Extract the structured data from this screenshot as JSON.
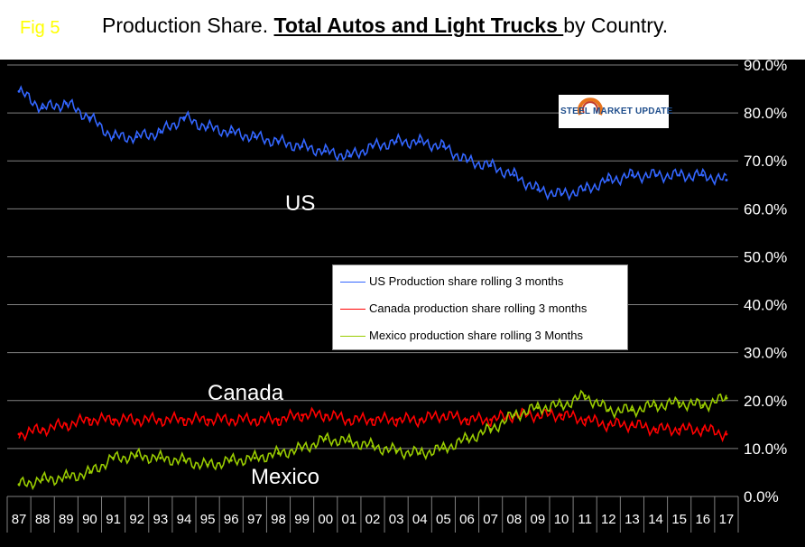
{
  "header": {
    "fig_label": "Fig 5",
    "title_pre": "Production Share. ",
    "title_bold": "Total Autos and Light Trucks ",
    "title_post": "by Country."
  },
  "logo": {
    "text": "STEEL MARKET UPDATE"
  },
  "annotations": {
    "us": "US",
    "canada": "Canada",
    "mexico": "Mexico"
  },
  "colors": {
    "us": "#3366ff",
    "canada": "#ff0000",
    "mexico": "#99cc00",
    "grid": "#808080",
    "axis_text": "#ffffff"
  },
  "chart_data": {
    "type": "line",
    "title": "Production Share. Total Autos and Light Trucks by Country.",
    "xlabel": "",
    "ylabel": "",
    "ylim": [
      0,
      90
    ],
    "yticks": [
      "0.0%",
      "10.0%",
      "20.0%",
      "30.0%",
      "40.0%",
      "50.0%",
      "60.0%",
      "70.0%",
      "80.0%",
      "90.0%"
    ],
    "categories": [
      "87",
      "88",
      "89",
      "90",
      "91",
      "92",
      "93",
      "94",
      "95",
      "96",
      "97",
      "98",
      "99",
      "00",
      "01",
      "02",
      "03",
      "04",
      "05",
      "06",
      "07",
      "08",
      "09",
      "10",
      "11",
      "12",
      "13",
      "14",
      "15",
      "16",
      "17"
    ],
    "series": [
      {
        "name": "US Production share rolling 3 months",
        "values": [
          84.5,
          81,
          82,
          79,
          75,
          75,
          76,
          79,
          77,
          76,
          75,
          74,
          73,
          72,
          71,
          73,
          74,
          74,
          73,
          70,
          69,
          67,
          64,
          63,
          64,
          66,
          67,
          67,
          67,
          67,
          66
        ]
      },
      {
        "name": "Canada production share rolling 3 months",
        "values": [
          13,
          14,
          15,
          16,
          16,
          16,
          16,
          16,
          16,
          16,
          16,
          16,
          17,
          17,
          16,
          16,
          16,
          16,
          17,
          16,
          16,
          17,
          17,
          17,
          16,
          15,
          15,
          14,
          14,
          14,
          13
        ]
      },
      {
        "name": "Mexico production share rolling 3 Months",
        "values": [
          2.5,
          3.5,
          4,
          5,
          8,
          8.5,
          8,
          7.5,
          6.5,
          7.5,
          8,
          9,
          10,
          12,
          11.5,
          10.5,
          9.5,
          9,
          10,
          12,
          14,
          17,
          18.5,
          19,
          21,
          18,
          18,
          19,
          19.5,
          19,
          20.5
        ]
      }
    ]
  }
}
